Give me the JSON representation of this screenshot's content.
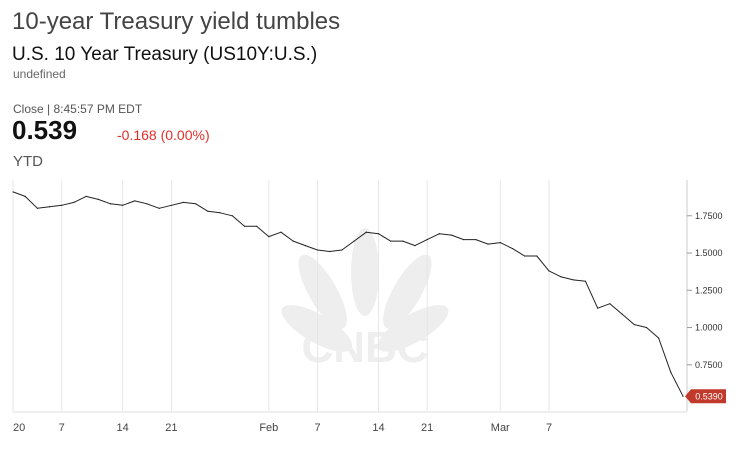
{
  "header": {
    "headline": "10-year Treasury yield tumbles",
    "security_name": "U.S. 10 Year Treasury (US10Y:U.S.)",
    "security_sub": "undefined",
    "close_label": "Close | 8:45:57 PM EDT",
    "price": "0.539",
    "change": "-0.168 (0.00%)",
    "range": "YTD"
  },
  "colors": {
    "line": "#222222",
    "grid": "#e6e6e6",
    "change": "#e0302a",
    "last_badge": "#c0392b"
  },
  "watermark": "CNBC",
  "chart_data": {
    "type": "line",
    "title": "",
    "xlabel": "",
    "ylabel": "",
    "ylim": [
      0.44,
      1.99
    ],
    "y_ticks": [
      0.75,
      1.0,
      1.25,
      1.5,
      1.75
    ],
    "y_tick_labels": [
      "0.7500",
      "1.0000",
      "1.2500",
      "1.5000",
      "1.7500"
    ],
    "x_ticks": [
      {
        "label": "20",
        "i": 0
      },
      {
        "label": "7",
        "i": 4
      },
      {
        "label": "14",
        "i": 9
      },
      {
        "label": "21",
        "i": 13
      },
      {
        "label": "Feb",
        "i": 21
      },
      {
        "label": "7",
        "i": 25
      },
      {
        "label": "14",
        "i": 30
      },
      {
        "label": "21",
        "i": 34
      },
      {
        "label": "Mar",
        "i": 40
      },
      {
        "label": "7",
        "i": 44
      }
    ],
    "grid": true,
    "last_value_label": "0.5390",
    "series": [
      {
        "values": [
          1.91,
          1.88,
          1.8,
          1.81,
          1.82,
          1.84,
          1.88,
          1.86,
          1.83,
          1.82,
          1.85,
          1.83,
          1.8,
          1.82,
          1.84,
          1.83,
          1.78,
          1.77,
          1.75,
          1.68,
          1.68,
          1.61,
          1.64,
          1.58,
          1.55,
          1.52,
          1.51,
          1.52,
          1.58,
          1.64,
          1.63,
          1.58,
          1.58,
          1.55,
          1.59,
          1.63,
          1.62,
          1.59,
          1.59,
          1.56,
          1.57,
          1.53,
          1.48,
          1.48,
          1.38,
          1.34,
          1.32,
          1.31,
          1.13,
          1.16,
          1.09,
          1.02,
          1.0,
          0.93,
          0.7,
          0.539
        ]
      }
    ]
  }
}
